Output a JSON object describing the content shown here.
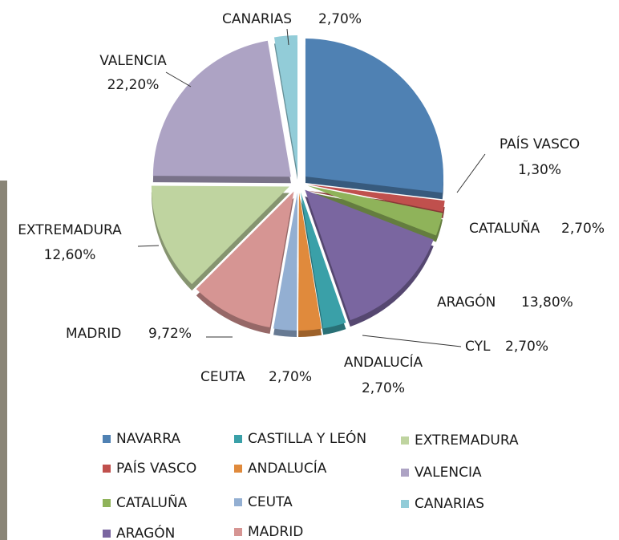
{
  "chart_data": {
    "type": "pie",
    "categories": [
      "NAVARRA",
      "CASTILLA Y LEÓN",
      "PAÍS VASCO",
      "ANDALUCÍA",
      "CATALUÑA",
      "CEUTA",
      "ARAGÓN",
      "MADRID",
      "EXTREMADURA",
      "VALENCIA",
      "CANARIAS"
    ],
    "slice_order": [
      0,
      2,
      4,
      6,
      1,
      3,
      5,
      7,
      8,
      9,
      10
    ],
    "slice_labels": [
      null,
      "CYL",
      "PAÍS VASCO",
      "ANDALUCÍA",
      "CATALUÑA",
      "CEUTA",
      "ARAGÓN",
      "MADRID",
      "EXTREMADURA",
      "VALENCIA",
      "CANARIAS"
    ],
    "values": [
      26.88,
      2.7,
      1.3,
      2.7,
      2.7,
      2.7,
      13.8,
      9.72,
      12.6,
      22.2,
      2.7
    ],
    "value_labels": [
      null,
      "2,70%",
      "1,30%",
      "2,70%",
      "2,70%",
      "2,70%",
      "13,80%",
      "9,72%",
      "12,60%",
      "22,20%",
      "2,70%"
    ],
    "colors": [
      "#4f81b3",
      "#3aa0a8",
      "#c0504d",
      "#e08a3c",
      "#8fb35a",
      "#93afd2",
      "#7a66a0",
      "#d69593",
      "#bfd4a0",
      "#ada3c4",
      "#92ccd8"
    ]
  }
}
